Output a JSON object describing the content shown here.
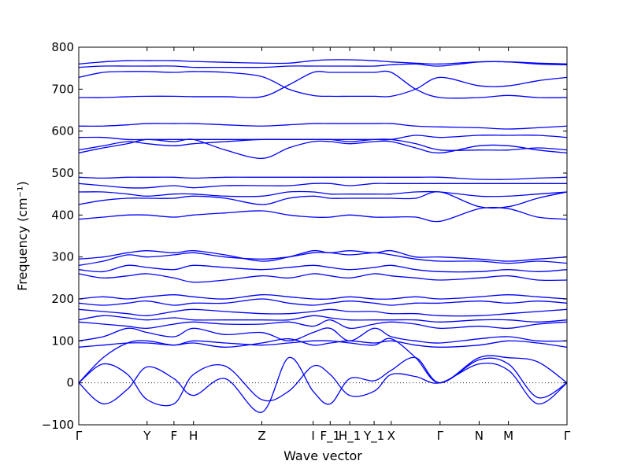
{
  "chart_data": {
    "type": "line",
    "title": "",
    "xlabel": "Wave vector",
    "ylabel": "Frequency (cm⁻¹)",
    "ylim": [
      -100,
      800
    ],
    "yticks": [
      -100,
      0,
      100,
      200,
      300,
      400,
      500,
      600,
      700,
      800
    ],
    "grid": false,
    "legend": "none",
    "color": "#0000ff",
    "xticks": [
      {
        "label": "Γ",
        "x": 0.0
      },
      {
        "label": "Y",
        "x": 1.4
      },
      {
        "label": "F",
        "x": 1.95
      },
      {
        "label": "H",
        "x": 2.35
      },
      {
        "label": "Z",
        "x": 3.75
      },
      {
        "label": "I",
        "x": 4.8
      },
      {
        "label": "F_1",
        "x": 5.15
      },
      {
        "label": "H_1",
        "x": 5.55
      },
      {
        "label": "Y_1",
        "x": 6.05
      },
      {
        "label": "X",
        "x": 6.4
      },
      {
        "label": "Γ",
        "x": 7.4
      },
      {
        "label": "N",
        "x": 8.2
      },
      {
        "label": "M",
        "x": 8.8
      },
      {
        "label": "Γ",
        "x": 10.0
      }
    ],
    "x": [
      0,
      0.5,
      1.0,
      1.4,
      1.95,
      2.35,
      3.0,
      3.75,
      4.3,
      4.8,
      5.15,
      5.55,
      6.05,
      6.4,
      6.9,
      7.4,
      8.2,
      8.8,
      9.4,
      10.0
    ],
    "series": [
      {
        "values": [
          0,
          -50,
          -15,
          38,
          10,
          -30,
          10,
          -70,
          60,
          -20,
          -50,
          10,
          5,
          30,
          60,
          0,
          55,
          45,
          -35,
          0
        ]
      },
      {
        "values": [
          0,
          45,
          20,
          -40,
          -50,
          20,
          40,
          -40,
          -20,
          40,
          20,
          -30,
          -20,
          20,
          15,
          0,
          45,
          30,
          -50,
          0
        ]
      },
      {
        "values": [
          0,
          60,
          95,
          100,
          90,
          100,
          95,
          90,
          95,
          100,
          100,
          95,
          90,
          105,
          60,
          0,
          60,
          60,
          50,
          0
        ]
      },
      {
        "values": [
          85,
          90,
          95,
          95,
          90,
          95,
          85,
          95,
          105,
          90,
          95,
          100,
          95,
          100,
          90,
          85,
          90,
          100,
          95,
          85
        ]
      },
      {
        "values": [
          100,
          110,
          130,
          120,
          110,
          130,
          115,
          120,
          100,
          120,
          130,
          100,
          130,
          110,
          100,
          95,
          105,
          110,
          100,
          100
        ]
      },
      {
        "values": [
          145,
          140,
          135,
          130,
          140,
          145,
          140,
          140,
          145,
          135,
          150,
          130,
          140,
          145,
          140,
          130,
          135,
          130,
          140,
          145
        ]
      },
      {
        "values": [
          150,
          160,
          155,
          150,
          155,
          150,
          150,
          150,
          150,
          160,
          155,
          150,
          150,
          150,
          150,
          145,
          150,
          150,
          145,
          150
        ]
      },
      {
        "values": [
          175,
          170,
          165,
          160,
          170,
          175,
          170,
          165,
          165,
          170,
          175,
          170,
          170,
          165,
          165,
          160,
          160,
          165,
          170,
          175
        ]
      },
      {
        "values": [
          190,
          185,
          190,
          195,
          185,
          190,
          190,
          200,
          190,
          185,
          190,
          195,
          190,
          185,
          190,
          190,
          195,
          190,
          195,
          190
        ]
      },
      {
        "values": [
          200,
          205,
          200,
          205,
          210,
          205,
          200,
          210,
          205,
          200,
          200,
          205,
          200,
          200,
          205,
          200,
          205,
          210,
          205,
          200
        ]
      },
      {
        "values": [
          260,
          250,
          255,
          260,
          250,
          240,
          245,
          255,
          250,
          260,
          255,
          250,
          260,
          255,
          250,
          245,
          250,
          255,
          245,
          245
        ]
      },
      {
        "values": [
          270,
          265,
          280,
          275,
          270,
          280,
          275,
          270,
          275,
          280,
          275,
          270,
          275,
          280,
          270,
          265,
          265,
          270,
          265,
          270
        ]
      },
      {
        "values": [
          280,
          290,
          305,
          300,
          305,
          310,
          300,
          295,
          300,
          310,
          310,
          305,
          310,
          305,
          295,
          290,
          290,
          285,
          290,
          285
        ]
      },
      {
        "values": [
          295,
          300,
          310,
          315,
          310,
          315,
          305,
          290,
          300,
          315,
          310,
          315,
          310,
          315,
          300,
          300,
          295,
          290,
          295,
          300
        ]
      },
      {
        "values": [
          390,
          395,
          400,
          400,
          395,
          400,
          405,
          410,
          400,
          395,
          395,
          400,
          395,
          395,
          395,
          385,
          415,
          415,
          395,
          390
        ]
      },
      {
        "values": [
          425,
          435,
          440,
          440,
          440,
          445,
          440,
          425,
          440,
          445,
          440,
          440,
          440,
          440,
          440,
          455,
          420,
          420,
          440,
          455
        ]
      },
      {
        "values": [
          455,
          455,
          450,
          445,
          450,
          450,
          445,
          445,
          455,
          455,
          450,
          450,
          450,
          450,
          455,
          455,
          445,
          445,
          450,
          455
        ]
      },
      {
        "values": [
          475,
          470,
          465,
          465,
          470,
          465,
          470,
          470,
          470,
          475,
          475,
          470,
          475,
          475,
          475,
          475,
          475,
          475,
          475,
          475
        ]
      },
      {
        "values": [
          490,
          488,
          490,
          490,
          490,
          488,
          490,
          490,
          490,
          490,
          490,
          490,
          490,
          490,
          490,
          490,
          485,
          485,
          488,
          490
        ]
      },
      {
        "values": [
          548,
          560,
          570,
          580,
          575,
          580,
          555,
          535,
          560,
          575,
          575,
          570,
          575,
          575,
          560,
          548,
          565,
          565,
          555,
          548
        ]
      },
      {
        "values": [
          555,
          565,
          575,
          570,
          565,
          570,
          575,
          580,
          580,
          580,
          580,
          575,
          580,
          580,
          570,
          555,
          555,
          555,
          560,
          555
        ]
      },
      {
        "values": [
          585,
          585,
          580,
          580,
          580,
          580,
          580,
          580,
          580,
          580,
          580,
          580,
          580,
          580,
          590,
          585,
          590,
          590,
          590,
          585
        ]
      },
      {
        "values": [
          612,
          612,
          615,
          618,
          618,
          618,
          615,
          612,
          615,
          618,
          618,
          618,
          618,
          618,
          612,
          610,
          608,
          605,
          608,
          612
        ]
      },
      {
        "values": [
          680,
          680,
          682,
          683,
          683,
          682,
          682,
          682,
          710,
          740,
          740,
          740,
          740,
          740,
          700,
          680,
          680,
          685,
          680,
          680
        ]
      },
      {
        "values": [
          728,
          740,
          742,
          742,
          740,
          742,
          740,
          730,
          700,
          685,
          683,
          683,
          683,
          683,
          700,
          728,
          708,
          708,
          720,
          728
        ]
      },
      {
        "values": [
          752,
          755,
          755,
          755,
          755,
          752,
          752,
          752,
          755,
          755,
          755,
          755,
          755,
          758,
          760,
          755,
          765,
          765,
          762,
          760
        ]
      },
      {
        "values": [
          760,
          765,
          768,
          768,
          768,
          766,
          764,
          762,
          762,
          768,
          770,
          770,
          768,
          765,
          762,
          760,
          765,
          765,
          760,
          758
        ]
      }
    ]
  }
}
